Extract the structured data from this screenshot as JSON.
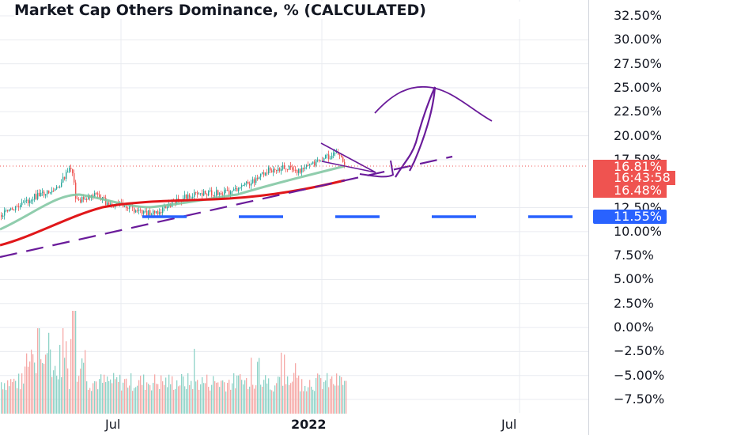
{
  "title": "Market Cap Others Dominance, % (CALCULATED)",
  "y_ticks": [
    "32.50%",
    "30.00%",
    "27.50%",
    "25.00%",
    "22.50%",
    "20.00%",
    "17.50%",
    "12.50%",
    "10.00%",
    "7.50%",
    "5.00%",
    "2.50%",
    "0.00%",
    "−2.50%",
    "−5.00%",
    "−7.50%"
  ],
  "x_ticks": [
    {
      "label": "Jul",
      "bold": false
    },
    {
      "label": "2022",
      "bold": true
    },
    {
      "label": "Jul",
      "bold": false
    }
  ],
  "badges": {
    "price": "16.81%",
    "countdown": "16:43:58",
    "ma_value": "16.48%",
    "level": "11.55%"
  },
  "colors": {
    "up": "#26a69a",
    "down": "#ef5350",
    "ma_fast": "#7cc49f",
    "ma_slow": "#e0171a",
    "trendline": "#6a1b9a",
    "level_line": "#2962ff",
    "drawing": "#6a1b9a",
    "grid": "#e9ebf0"
  },
  "chart_data": {
    "type": "line",
    "title": "Market Cap Others Dominance, % (CALCULATED)",
    "xlabel": "",
    "ylabel": "",
    "x_ticks": [
      "Jul",
      "2022",
      "Jul"
    ],
    "ylim": [
      -8.9,
      33.6
    ],
    "y_ticks": [
      32.5,
      30,
      27.5,
      25,
      22.5,
      20,
      17.5,
      12.5,
      10,
      7.5,
      5,
      2.5,
      0,
      -2.5,
      -5,
      -7.5
    ],
    "grid": true,
    "series": [],
    "x": [
      "2021-03",
      "2021-04",
      "2021-05",
      "2021-06",
      "2021-07",
      "2021-08",
      "2021-09",
      "2021-10",
      "2021-11",
      "2021-12",
      "2022-01"
    ],
    "price": [
      11.8,
      13.8,
      13.9,
      13.0,
      12.2,
      13.2,
      14.2,
      14.5,
      15.6,
      17.3,
      16.8
    ],
    "ma_fast": [
      11.0,
      12.3,
      13.3,
      13.0,
      12.6,
      12.9,
      13.4,
      13.6,
      14.8,
      15.7,
      16.3
    ],
    "ma_slow": [
      9.8,
      10.6,
      11.6,
      12.4,
      12.8,
      13.1,
      13.4,
      13.6,
      14.0,
      14.7,
      15.5
    ],
    "level": 11.55,
    "last_price": 16.81,
    "ma_last": 16.48
  }
}
